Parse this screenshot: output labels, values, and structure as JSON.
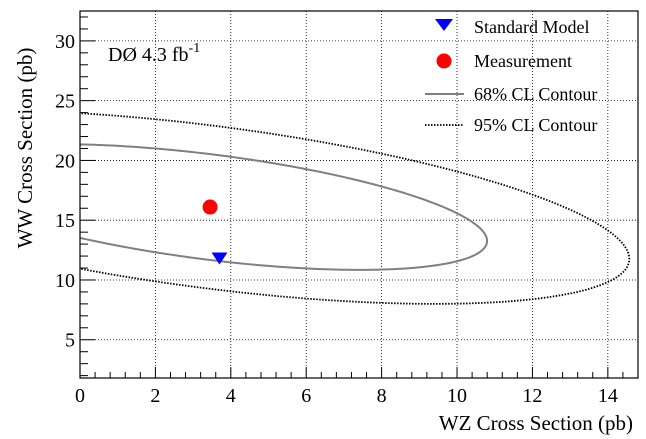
{
  "chart_data": {
    "type": "scatter",
    "xlabel": "WZ Cross Section (pb)",
    "ylabel": "WW Cross Section (pb)",
    "xlim": [
      0,
      14.8
    ],
    "ylim": [
      1.8,
      32.5
    ],
    "x_ticks": [
      0,
      2,
      4,
      6,
      8,
      10,
      12,
      14
    ],
    "y_ticks": [
      5,
      10,
      15,
      20,
      25,
      30
    ],
    "grid": true,
    "legend_position": "top-right",
    "annotation": {
      "text": "DØ 4.3 fb",
      "superscript": "-1"
    },
    "series": [
      {
        "name": "Standard Model",
        "marker": "triangle-down",
        "color": "#0000ff",
        "points": [
          {
            "x": 3.7,
            "y": 11.8
          }
        ]
      },
      {
        "name": "Measurement",
        "marker": "circle",
        "color": "#ff0000",
        "points": [
          {
            "x": 3.45,
            "y": 16.1
          }
        ]
      },
      {
        "name": "68% CL Contour",
        "line_style": "solid",
        "color": "#808080",
        "center": {
          "x": 3.45,
          "y": 16.1
        },
        "shape": {
          "ux": 6.75,
          "uy": -4.35,
          "vx": 2.9,
          "vy": 2.95
        }
      },
      {
        "name": "95% CL Contour",
        "line_style": "dotted",
        "color": "#000000",
        "center": {
          "x": 3.45,
          "y": 16.1
        },
        "shape": {
          "ux": 10.1,
          "uy": -6.8,
          "vx": 4.65,
          "vy": 4.4
        }
      }
    ]
  }
}
